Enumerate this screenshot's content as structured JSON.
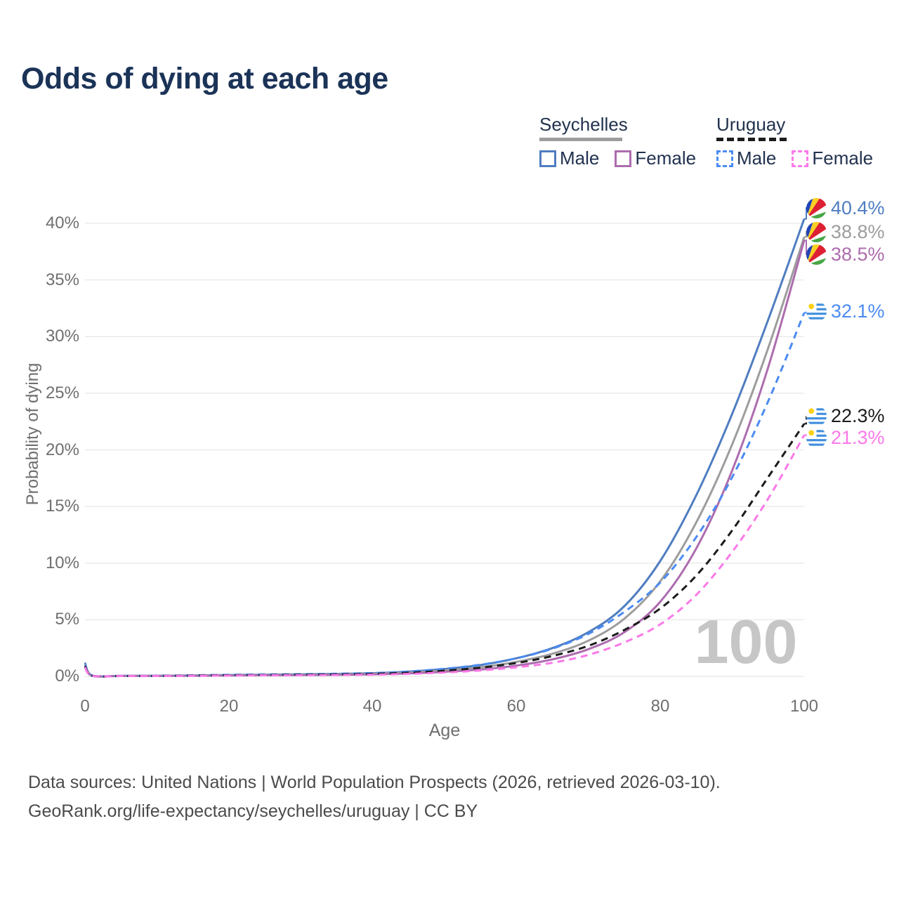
{
  "title": "Odds of dying at each age",
  "watermark": "100",
  "legend": {
    "groups": [
      {
        "country": "Seychelles",
        "items": [
          {
            "label": "Male"
          },
          {
            "label": "Female"
          }
        ]
      },
      {
        "country": "Uruguay",
        "items": [
          {
            "label": "Male"
          },
          {
            "label": "Female"
          }
        ]
      }
    ]
  },
  "footer": {
    "line1": "Data sources: United Nations | World Population Prospects (2026, retrieved 2026-03-10).",
    "line2": "GeoRank.org/life-expectancy/seychelles/uruguay | CC BY"
  },
  "chart_data": {
    "type": "line",
    "title": "Odds of dying at each age",
    "xlabel": "Age",
    "ylabel": "Probability of dying",
    "x_range": [
      0,
      100
    ],
    "y_range_percent": [
      0,
      42
    ],
    "grid": "horizontal",
    "xticks": [
      "0",
      "20",
      "40",
      "60",
      "80",
      "100"
    ],
    "yticks": [
      "0%",
      "5%",
      "10%",
      "15%",
      "20%",
      "25%",
      "30%",
      "35%",
      "40%"
    ],
    "hover_age_indicator": "100",
    "x": [
      0,
      1,
      5,
      10,
      15,
      20,
      25,
      30,
      35,
      40,
      45,
      50,
      55,
      60,
      65,
      70,
      75,
      80,
      85,
      90,
      95,
      100
    ],
    "series": [
      {
        "name": "Seychelles Male",
        "country": "Seychelles",
        "sex": "male",
        "line_style": "solid",
        "color": "#4f7dc0",
        "flag": "seychelles",
        "end_label": "40.4%",
        "values": [
          1.2,
          0.08,
          0.05,
          0.05,
          0.08,
          0.12,
          0.15,
          0.18,
          0.22,
          0.28,
          0.42,
          0.65,
          1.0,
          1.6,
          2.5,
          3.9,
          6.2,
          10.2,
          16.0,
          23.2,
          31.5,
          40.4
        ]
      },
      {
        "name": "Seychelles Both sexes",
        "country": "Seychelles",
        "sex": "both",
        "line_style": "solid",
        "color": "#9d9d9d",
        "flag": "seychelles",
        "end_label": "38.8%",
        "values": [
          1.05,
          0.07,
          0.04,
          0.05,
          0.07,
          0.1,
          0.13,
          0.15,
          0.18,
          0.23,
          0.34,
          0.52,
          0.8,
          1.28,
          2.0,
          3.15,
          5.1,
          8.4,
          13.6,
          20.5,
          29.0,
          38.8
        ]
      },
      {
        "name": "Seychelles Female",
        "country": "Seychelles",
        "sex": "female",
        "line_style": "solid",
        "color": "#ad6cae",
        "flag": "seychelles",
        "end_label": "38.5%",
        "values": [
          0.9,
          0.06,
          0.04,
          0.04,
          0.05,
          0.08,
          0.1,
          0.12,
          0.14,
          0.18,
          0.26,
          0.4,
          0.6,
          0.95,
          1.5,
          2.4,
          3.9,
          6.6,
          11.3,
          18.2,
          27.3,
          38.5
        ]
      },
      {
        "name": "Uruguay Male",
        "country": "Uruguay",
        "sex": "male",
        "line_style": "dashed",
        "color": "#4b8bf2",
        "flag": "uruguay",
        "end_label": "32.1%",
        "values": [
          1.0,
          0.06,
          0.04,
          0.05,
          0.09,
          0.13,
          0.16,
          0.19,
          0.23,
          0.29,
          0.43,
          0.67,
          1.03,
          1.6,
          2.45,
          3.75,
          5.7,
          8.3,
          12.3,
          17.6,
          24.3,
          32.1
        ]
      },
      {
        "name": "Uruguay Both sexes",
        "country": "Uruguay",
        "sex": "both",
        "line_style": "dashed",
        "color": "#1c1c1c",
        "flag": "uruguay",
        "end_label": "22.3%",
        "values": [
          0.9,
          0.05,
          0.03,
          0.04,
          0.07,
          0.1,
          0.12,
          0.14,
          0.17,
          0.22,
          0.32,
          0.5,
          0.77,
          1.18,
          1.8,
          2.7,
          4.1,
          6.0,
          8.9,
          12.9,
          17.6,
          22.3
        ]
      },
      {
        "name": "Uruguay Female",
        "country": "Uruguay",
        "sex": "female",
        "line_style": "dashed",
        "color": "#fb79e8",
        "flag": "uruguay",
        "end_label": "21.3%",
        "values": [
          0.8,
          0.05,
          0.03,
          0.03,
          0.05,
          0.07,
          0.09,
          0.1,
          0.12,
          0.15,
          0.22,
          0.34,
          0.52,
          0.8,
          1.2,
          1.9,
          3.0,
          4.6,
          7.2,
          11.0,
          15.7,
          21.3
        ]
      }
    ],
    "colors": {
      "title_text": "#1b3357",
      "legend_text": "#22324f",
      "axis_text": "#6f6f6f",
      "gridline": "#ebebeb",
      "watermark": "#c6c6c6",
      "footer_text": "#4b4b4b"
    }
  }
}
